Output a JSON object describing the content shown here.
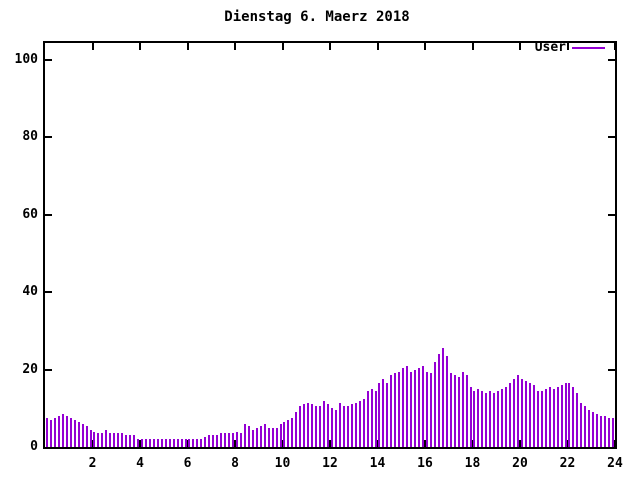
{
  "title": "Dienstag 6. Maerz 2018",
  "legend": {
    "label": "User"
  },
  "colors": {
    "series": "#9400D3",
    "axis": "#000000",
    "background": "#ffffff",
    "text": "#000000"
  },
  "axes": {
    "x_tick_labels": [
      "2",
      "4",
      "6",
      "8",
      "10",
      "12",
      "14",
      "16",
      "18",
      "20",
      "22",
      "24"
    ],
    "y_tick_labels": [
      "0",
      "20",
      "40",
      "60",
      "80",
      "100"
    ]
  },
  "chart_data": {
    "type": "bar",
    "style": "impulses",
    "title": "Dienstag 6. Maerz 2018",
    "series": [
      {
        "name": "User",
        "color": "#9400D3",
        "x_start_hour": 0,
        "x_interval_minutes": 10,
        "values": [
          7.5,
          7,
          7.5,
          8,
          8.5,
          8,
          7.5,
          7,
          6.5,
          6,
          5.5,
          4.5,
          4,
          3.5,
          3.5,
          4.5,
          3.5,
          3.5,
          3.5,
          3.5,
          3,
          3,
          3,
          2,
          2,
          2,
          2,
          2,
          2,
          2,
          2,
          2,
          2,
          2,
          2,
          2,
          2,
          2,
          2,
          2,
          2.5,
          3,
          3,
          3,
          3.5,
          3.5,
          3.5,
          3.5,
          4,
          3.5,
          6,
          5.5,
          4.5,
          5,
          5.5,
          6,
          5,
          5,
          5,
          6,
          6.5,
          7,
          7.5,
          9,
          10.5,
          11,
          11.5,
          11,
          10.5,
          10.5,
          12,
          11,
          10,
          9.5,
          11.5,
          10.5,
          10.5,
          11,
          11.5,
          12,
          12.5,
          14.5,
          15,
          14.5,
          16.5,
          17.5,
          16.5,
          18.5,
          19,
          19.5,
          20.5,
          21,
          19.5,
          20,
          20.5,
          21,
          19.5,
          19,
          22,
          24,
          25.5,
          23.5,
          19,
          18.5,
          18,
          19.5,
          18.5,
          15.5,
          14.5,
          15,
          14.5,
          14,
          14.5,
          14,
          14.5,
          15,
          15.5,
          16.5,
          17.5,
          18.5,
          17.5,
          17,
          16.5,
          16,
          14.5,
          14.5,
          15,
          15.5,
          15,
          15.5,
          16,
          16.5,
          16.5,
          15.5,
          14,
          11.5,
          10.5,
          9.5,
          9,
          8.5,
          8,
          8,
          7.5,
          7.5
        ]
      }
    ],
    "xlabel": "",
    "ylabel": "",
    "xlim": [
      0,
      24
    ],
    "ylim": [
      0,
      104
    ],
    "x_ticks": [
      2,
      4,
      6,
      8,
      10,
      12,
      14,
      16,
      18,
      20,
      22,
      24
    ],
    "y_ticks": [
      0,
      20,
      40,
      60,
      80,
      100
    ],
    "grid": false,
    "legend_position": "top-right-inside-margin",
    "ticks_mirrored": true
  }
}
